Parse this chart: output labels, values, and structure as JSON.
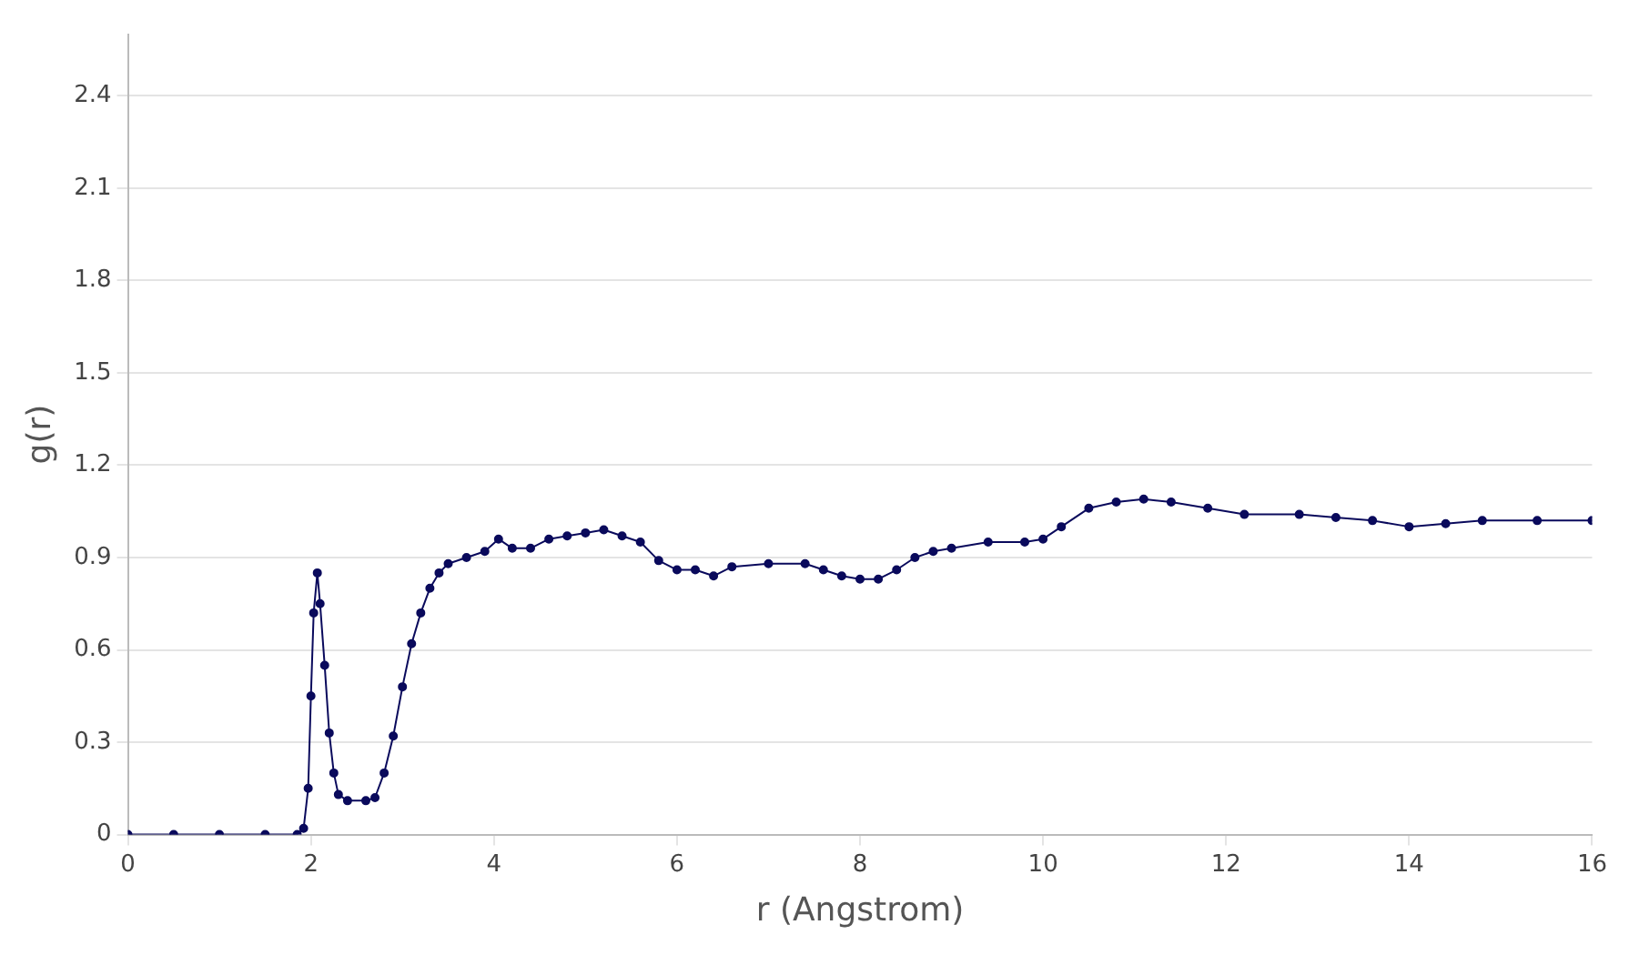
{
  "chart_data": {
    "type": "line",
    "xlabel": "r (Angstrom)",
    "ylabel": "g(r)",
    "xlim": [
      0,
      16
    ],
    "xticks": [
      0,
      2,
      4,
      6,
      8,
      10,
      12,
      14,
      16
    ],
    "ylim": [
      0,
      2.6
    ],
    "yticks": [
      0,
      0.3,
      0.6,
      0.9,
      1.2,
      1.5,
      1.8,
      2.1,
      2.4
    ],
    "grid": "y",
    "legend": false,
    "marker": "circle",
    "line_style": "solid",
    "series": [
      {
        "color": "#0a0a5c",
        "x": [
          0,
          0.5,
          1,
          1.5,
          1.85,
          1.92,
          1.97,
          2,
          2.03,
          2.07,
          2.1,
          2.15,
          2.2,
          2.25,
          2.3,
          2.4,
          2.6,
          2.7,
          2.8,
          2.9,
          3,
          3.1,
          3.2,
          3.3,
          3.4,
          3.5,
          3.7,
          3.9,
          4.05,
          4.2,
          4.4,
          4.6,
          4.8,
          5,
          5.2,
          5.4,
          5.6,
          5.8,
          6,
          6.2,
          6.4,
          6.6,
          7,
          7.4,
          7.6,
          7.8,
          8,
          8.2,
          8.4,
          8.6,
          8.8,
          9,
          9.4,
          9.8,
          10,
          10.2,
          10.5,
          10.8,
          11.1,
          11.4,
          11.8,
          12.2,
          12.8,
          13.2,
          13.6,
          14,
          14.4,
          14.8,
          15.4,
          16
        ],
        "values": [
          0,
          0,
          0,
          0,
          0,
          0.02,
          0.15,
          0.45,
          0.72,
          0.85,
          0.75,
          0.55,
          0.33,
          0.2,
          0.13,
          0.11,
          0.11,
          0.12,
          0.2,
          0.32,
          0.48,
          0.62,
          0.72,
          0.8,
          0.85,
          0.88,
          0.9,
          0.92,
          0.96,
          0.93,
          0.93,
          0.96,
          0.97,
          0.98,
          0.99,
          0.97,
          0.95,
          0.89,
          0.86,
          0.86,
          0.84,
          0.87,
          0.88,
          0.88,
          0.86,
          0.84,
          0.83,
          0.83,
          0.86,
          0.9,
          0.92,
          0.93,
          0.95,
          0.95,
          0.96,
          1,
          1.06,
          1.08,
          1.09,
          1.08,
          1.06,
          1.04,
          1.04,
          1.03,
          1.02,
          1,
          1.01,
          1.02,
          1.02,
          1.02
        ]
      }
    ]
  }
}
